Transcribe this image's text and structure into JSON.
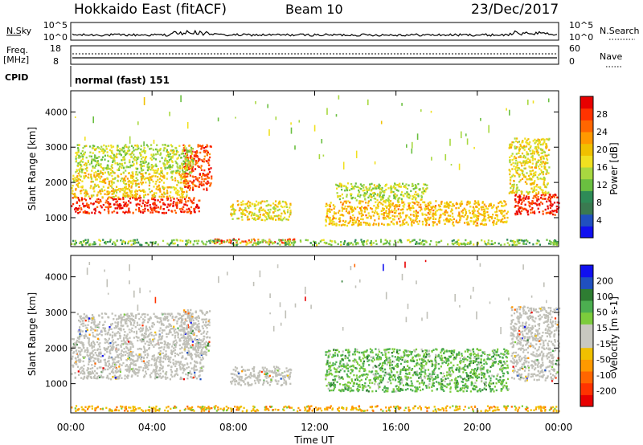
{
  "header": {
    "site": "Hokkaido East (fitACF)",
    "beam": "Beam 10",
    "date": "23/Dec/2017"
  },
  "status_panels": {
    "nsky_label": "N.Sky",
    "nsky_ticks": [
      "10^5",
      "10^0"
    ],
    "nsearch_label": "N.Search",
    "nsearch_ticks": [
      "10^5",
      "10^0"
    ],
    "freq_label": "Freq.",
    "freq_unit": "[MHz]",
    "freq_ticks": [
      "18",
      "8"
    ],
    "nave_label": "Nave",
    "nave_ticks": [
      "60",
      "0"
    ],
    "cpid_label": "CPID",
    "cpid_value": "normal (fast) 151"
  },
  "colors": {
    "power_scale": [
      "#1010f0",
      "#2050c0",
      "#3a7a50",
      "#2e8b57",
      "#6abf40",
      "#a8d840",
      "#f0e020",
      "#f0c000",
      "#ff9900",
      "#ff6600",
      "#ff3300",
      "#e80000"
    ],
    "velocity_scale": [
      "#1010f0",
      "#2050c0",
      "#2e7d32",
      "#4caf50",
      "#7ccc3c",
      "#c8c8c0",
      "#c8c8c0",
      "#f0c000",
      "#ff9900",
      "#ff6600",
      "#ff3300",
      "#e80000"
    ],
    "ground_scatter": "#c0c0b8"
  },
  "chart_data": [
    {
      "type": "heatmap",
      "panel": "power",
      "xlabel": "Time UT",
      "ylabel": "Slant Range [km]",
      "x_ticks": [
        "00:00",
        "04:00",
        "08:00",
        "12:00",
        "16:00",
        "20:00",
        "00:00"
      ],
      "xlim_hours": [
        0,
        24
      ],
      "y_ticks": [
        1000,
        2000,
        3000,
        4000
      ],
      "ylim": [
        180,
        4600
      ],
      "colorbar_label": "Power [dB]",
      "colorbar_ticks": [
        "4",
        "8",
        "12",
        "16",
        "20",
        "24",
        "28"
      ],
      "colorbar_range": [
        0,
        30
      ],
      "echo_regions": [
        {
          "t0": 0.0,
          "t1": 6.3,
          "r0": 1150,
          "r1": 1600,
          "level": 27
        },
        {
          "t0": 0.0,
          "t1": 5.8,
          "r0": 1600,
          "r1": 2300,
          "level": 18
        },
        {
          "t0": 5.5,
          "t1": 6.9,
          "r0": 1800,
          "r1": 3100,
          "level": 26
        },
        {
          "t0": 0.2,
          "t1": 6.0,
          "r0": 2300,
          "r1": 3100,
          "level": 14
        },
        {
          "t0": 7.8,
          "t1": 10.8,
          "r0": 950,
          "r1": 1500,
          "level": 17
        },
        {
          "t0": 12.5,
          "t1": 21.5,
          "r0": 800,
          "r1": 1500,
          "level": 19
        },
        {
          "t0": 13.0,
          "t1": 17.5,
          "r0": 1500,
          "r1": 2000,
          "level": 14
        },
        {
          "t0": 7.0,
          "t1": 11.0,
          "r0": 300,
          "r1": 420,
          "level": 26
        },
        {
          "t0": 0.0,
          "t1": 24.0,
          "r0": 250,
          "r1": 400,
          "level": 12
        },
        {
          "t0": 21.8,
          "t1": 24.0,
          "r0": 1100,
          "r1": 1700,
          "level": 27
        },
        {
          "t0": 21.5,
          "t1": 23.5,
          "r0": 1700,
          "r1": 3300,
          "level": 17
        }
      ]
    },
    {
      "type": "heatmap",
      "panel": "velocity",
      "xlabel": "Time UT",
      "ylabel": "Slant Range [km]",
      "x_ticks": [
        "00:00",
        "04:00",
        "08:00",
        "12:00",
        "16:00",
        "20:00",
        "00:00"
      ],
      "xlim_hours": [
        0,
        24
      ],
      "y_ticks": [
        1000,
        2000,
        3000,
        4000
      ],
      "ylim": [
        180,
        4600
      ],
      "colorbar_label": "Velocity [m s-1]",
      "colorbar_ticks": [
        "200",
        "100",
        "50",
        "15",
        "-15",
        "-50",
        "-100",
        "-200"
      ],
      "echo_regions": [
        {
          "t0": 0.0,
          "t1": 6.5,
          "r0": 1150,
          "r1": 2300,
          "kind": "ground"
        },
        {
          "t0": 5.5,
          "t1": 6.8,
          "r0": 1800,
          "r1": 3100,
          "kind": "ground"
        },
        {
          "t0": 0.3,
          "t1": 6.0,
          "r0": 2300,
          "r1": 3000,
          "kind": "ground"
        },
        {
          "t0": 7.8,
          "t1": 10.8,
          "r0": 950,
          "r1": 1500,
          "kind": "ground"
        },
        {
          "t0": 12.5,
          "t1": 21.5,
          "r0": 800,
          "r1": 2000,
          "kind": "positive"
        },
        {
          "t0": 0.0,
          "t1": 24.0,
          "r0": 250,
          "r1": 400,
          "kind": "negative"
        },
        {
          "t0": 21.6,
          "t1": 24.0,
          "r0": 1100,
          "r1": 3200,
          "kind": "ground"
        }
      ]
    }
  ]
}
